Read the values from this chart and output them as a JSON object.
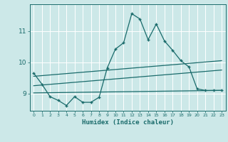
{
  "title": "",
  "xlabel": "Humidex (Indice chaleur)",
  "background_color": "#cce8e8",
  "line_color": "#1a6b6b",
  "grid_color": "#ffffff",
  "xlim": [
    -0.5,
    23.5
  ],
  "ylim": [
    8.45,
    11.85
  ],
  "yticks": [
    9,
    10,
    11
  ],
  "xticks": [
    0,
    1,
    2,
    3,
    4,
    5,
    6,
    7,
    8,
    9,
    10,
    11,
    12,
    13,
    14,
    15,
    16,
    17,
    18,
    19,
    20,
    21,
    22,
    23
  ],
  "main_x": [
    0,
    1,
    2,
    3,
    4,
    5,
    6,
    7,
    8,
    9,
    10,
    11,
    12,
    13,
    14,
    15,
    16,
    17,
    18,
    19,
    20,
    21,
    22,
    23
  ],
  "main_y": [
    9.65,
    9.3,
    8.9,
    8.78,
    8.62,
    8.9,
    8.72,
    8.72,
    8.88,
    9.82,
    10.42,
    10.62,
    11.55,
    11.38,
    10.72,
    11.22,
    10.68,
    10.38,
    10.05,
    9.85,
    9.15,
    9.1,
    9.1,
    9.1
  ],
  "line1_x": [
    0,
    23
  ],
  "line1_y": [
    9.55,
    10.05
  ],
  "line2_x": [
    0,
    23
  ],
  "line2_y": [
    9.25,
    9.75
  ],
  "line3_x": [
    0,
    23
  ],
  "line3_y": [
    9.02,
    9.1
  ]
}
